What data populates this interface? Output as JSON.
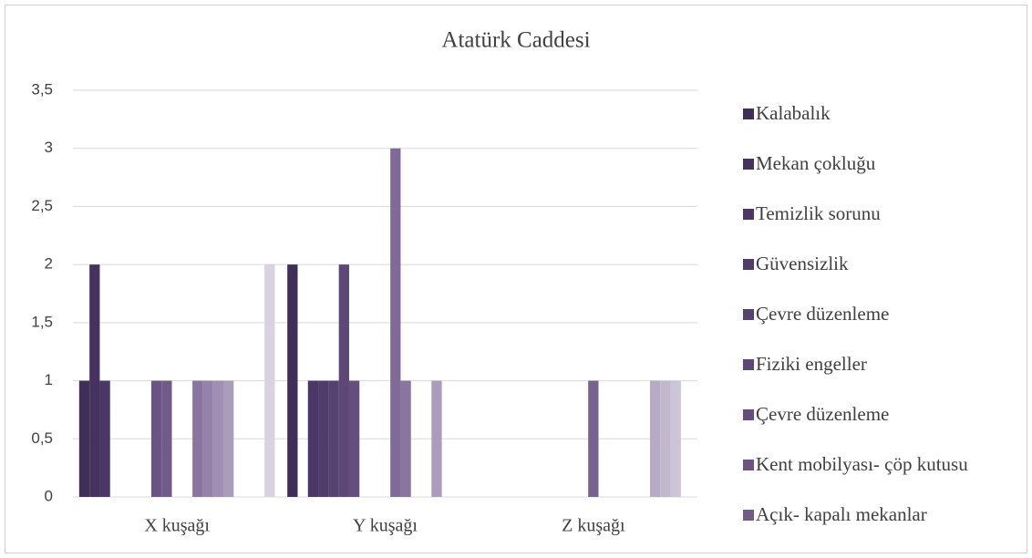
{
  "chart_data": {
    "type": "bar",
    "title": "Atatürk Caddesi",
    "categories": [
      "X kuşağı",
      "Y kuşağı",
      "Z kuşağı"
    ],
    "ylim": [
      0,
      3.5
    ],
    "yticks": [
      0,
      {
        "value": 0.5,
        "label": "0,5"
      },
      1,
      {
        "value": 1.5,
        "label": "1,5"
      },
      2,
      {
        "value": 2.5,
        "label": "2,5"
      },
      3,
      {
        "value": 3.5,
        "label": "3,5"
      }
    ],
    "grid": true,
    "legend": "right",
    "series": [
      {
        "name": "Kalabalık",
        "color": "#3f2d5a",
        "values": [
          1,
          2,
          0
        ]
      },
      {
        "name": "Mekan çokluğu",
        "color": "#45325f",
        "values": [
          2,
          0,
          0
        ]
      },
      {
        "name": "Temizlik sorunu",
        "color": "#4b3765",
        "values": [
          1,
          1,
          0
        ]
      },
      {
        "name": "Güvensizlik",
        "color": "#503c6b",
        "values": [
          0,
          1,
          0
        ]
      },
      {
        "name": "Çevre düzenleme",
        "color": "#564270",
        "values": [
          0,
          1,
          0
        ]
      },
      {
        "name": "Fiziki engeller",
        "color": "#5c4776",
        "values": [
          0,
          2,
          0
        ]
      },
      {
        "name": "Çevre düzenleme",
        "color": "#634e7d",
        "values": [
          0,
          1,
          0
        ]
      },
      {
        "name": "Kent mobilyası- çöp kutusu",
        "color": "#6a5484",
        "values": [
          1,
          0,
          0
        ]
      },
      {
        "name": "Açık- kapalı mekanlar",
        "color": "#715b8a",
        "values": [
          1,
          0,
          0
        ]
      },
      {
        "name": null,
        "color": "#786291",
        "values": [
          0,
          0,
          1
        ]
      },
      {
        "name": null,
        "color": "#806a98",
        "values": [
          0,
          3,
          0
        ]
      },
      {
        "name": null,
        "color": "#8a75a1",
        "values": [
          1,
          1,
          0
        ]
      },
      {
        "name": null,
        "color": "#9582aa",
        "values": [
          1,
          0,
          0
        ]
      },
      {
        "name": null,
        "color": "#a08fb3",
        "values": [
          1,
          0,
          0
        ]
      },
      {
        "name": null,
        "color": "#ab9cbc",
        "values": [
          1,
          1,
          0
        ]
      },
      {
        "name": null,
        "color": "#b6aac5",
        "values": [
          0,
          0,
          1
        ]
      },
      {
        "name": null,
        "color": "#c1b8ce",
        "values": [
          0,
          0,
          1
        ]
      },
      {
        "name": null,
        "color": "#ccc5d7",
        "values": [
          0,
          0,
          1
        ]
      },
      {
        "name": null,
        "color": "#d8d2e1",
        "values": [
          2,
          0,
          0
        ]
      }
    ]
  }
}
